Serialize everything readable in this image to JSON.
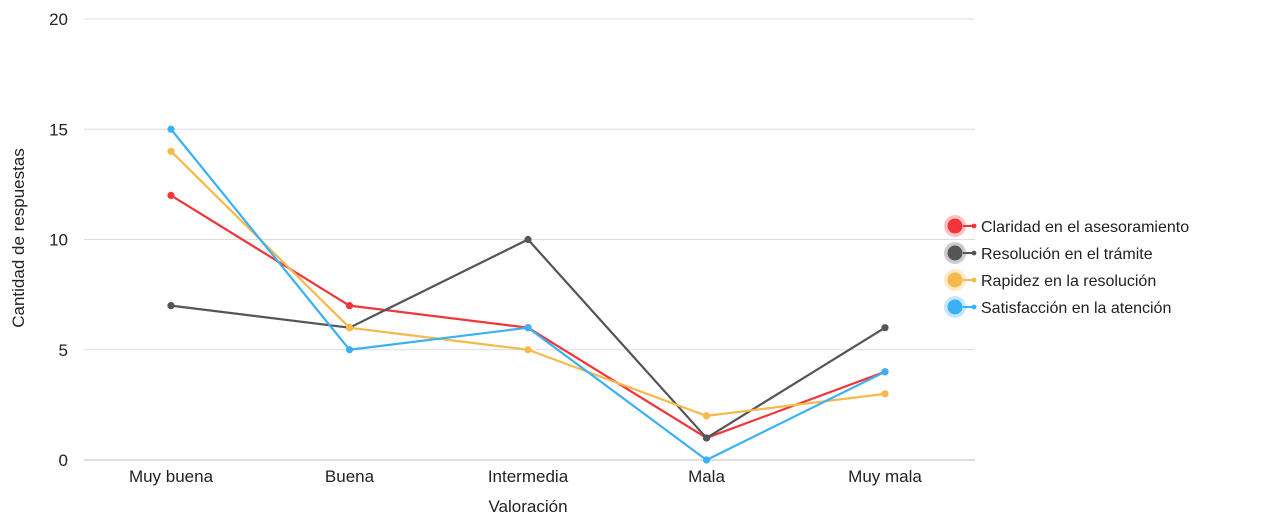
{
  "chart_data": {
    "type": "line",
    "xlabel": "Valoración",
    "ylabel": "Cantidad de respuestas",
    "categories": [
      "Muy buena",
      "Buena",
      "Intermedia",
      "Mala",
      "Muy mala"
    ],
    "ylim": [
      0,
      20
    ],
    "yticks": [
      "0",
      "5",
      "10",
      "15",
      "20"
    ],
    "grid": true,
    "legend_position": "right",
    "series": [
      {
        "name": "Claridad en el asesoramiento",
        "color": "#f0353b",
        "values": [
          12,
          7,
          6,
          1,
          4
        ]
      },
      {
        "name": "Resolución en el trámite",
        "color": "#555555",
        "values": [
          7,
          6,
          10,
          1,
          6
        ]
      },
      {
        "name": "Rapidez en la resolución",
        "color": "#f5b94c",
        "values": [
          14,
          6,
          5,
          2,
          3
        ]
      },
      {
        "name": "Satisfacción en la atención",
        "color": "#3ab1f5",
        "values": [
          15,
          5,
          6,
          0,
          4
        ]
      }
    ]
  }
}
